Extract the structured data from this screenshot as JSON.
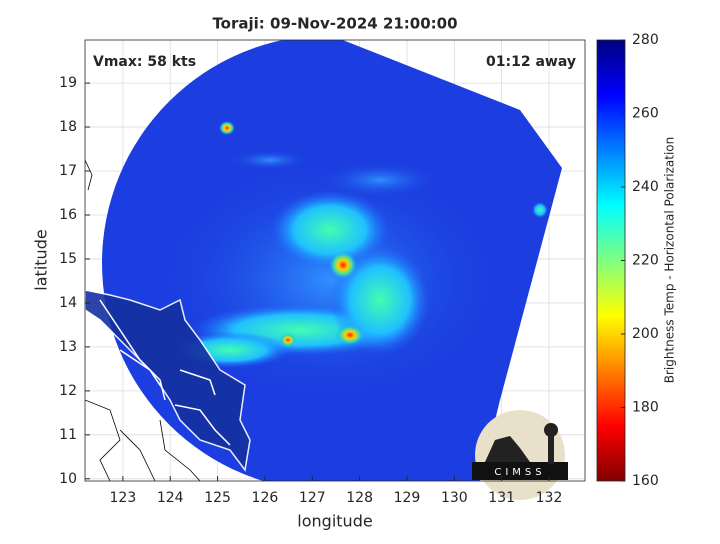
{
  "chart_data": {
    "type": "heatmap",
    "title": "Toraji: 09-Nov-2024 21:00:00",
    "xlabel": "longitude",
    "ylabel": "latitude",
    "annotations": [
      "Vmax: 58 kts",
      "01:12 away"
    ],
    "xlim": [
      122.2,
      132.76
    ],
    "xticks": [
      123,
      124,
      125,
      126,
      127,
      128,
      129,
      130,
      131,
      132
    ],
    "ylim": [
      9.95,
      19.98
    ],
    "yticks": [
      10,
      11,
      12,
      13,
      14,
      15,
      16,
      17,
      18,
      19
    ],
    "grid": true,
    "colorbar": {
      "label": "Brightness Temp - Horizontal Polarization",
      "colormap": "jet",
      "clim": [
        160,
        280
      ],
      "ticks": [
        160,
        180,
        200,
        220,
        240,
        260,
        280
      ]
    },
    "logo": "CIMSS"
  }
}
